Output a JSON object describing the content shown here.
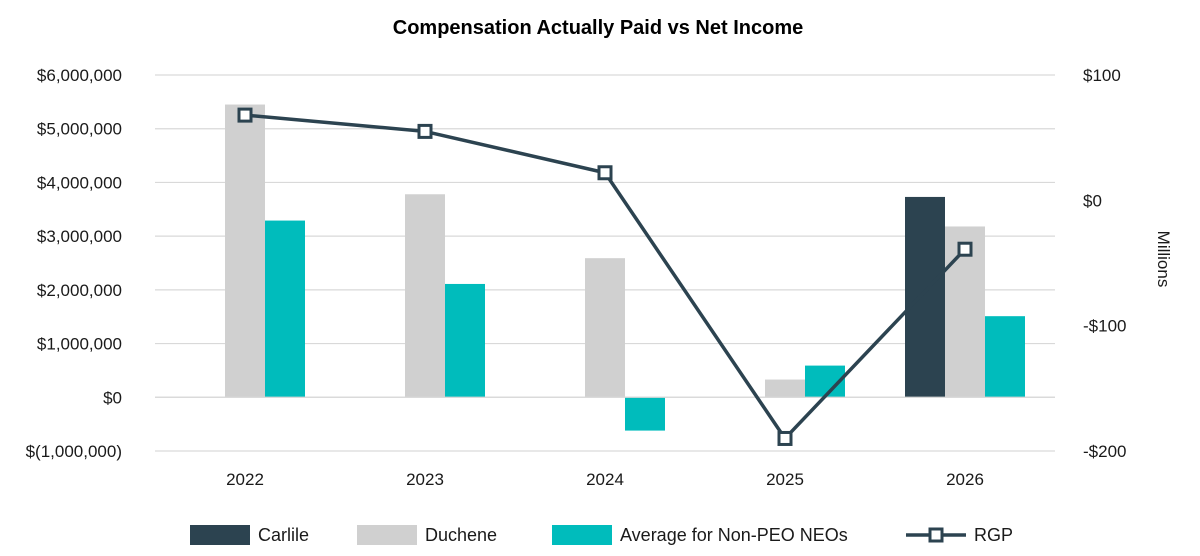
{
  "chart_data": {
    "type": "bar",
    "title": "Compensation Actually Paid vs Net Income",
    "categories": [
      "2022",
      "2023",
      "2024",
      "2025",
      "2026"
    ],
    "y_left": {
      "ylim": [
        -1000000,
        6000000
      ],
      "ticks": [
        -1000000,
        0,
        1000000,
        2000000,
        3000000,
        4000000,
        5000000,
        6000000
      ],
      "tick_labels": [
        "$(1,000,000)",
        "$0",
        "$1,000,000",
        "$2,000,000",
        "$3,000,000",
        "$4,000,000",
        "$5,000,000",
        "$6,000,000"
      ]
    },
    "y_right": {
      "label": "Millions",
      "ylim": [
        -200,
        100
      ],
      "ticks": [
        -200,
        -100,
        0,
        100
      ],
      "tick_labels": [
        "-$200",
        "-$100",
        "$0",
        "$100"
      ]
    },
    "series": [
      {
        "name": "Carlile",
        "type": "bar",
        "axis": "left",
        "color": "#2c4350",
        "values": [
          null,
          null,
          null,
          null,
          3730000
        ]
      },
      {
        "name": "Duchene",
        "type": "bar",
        "axis": "left",
        "color": "#d0d0d0",
        "values": [
          5450000,
          3780000,
          2590000,
          330000,
          3180000
        ]
      },
      {
        "name": "Average for Non-PEO NEOs",
        "type": "bar",
        "axis": "left",
        "color": "#00bcbc",
        "values": [
          3290000,
          2110000,
          -620000,
          590000,
          1510000
        ]
      },
      {
        "name": "RGP",
        "type": "line",
        "axis": "right",
        "color": "#2c4350",
        "marker": "square",
        "values": [
          68,
          55,
          22,
          -190,
          -39
        ]
      }
    ],
    "legend_position": "bottom",
    "grid": true
  }
}
